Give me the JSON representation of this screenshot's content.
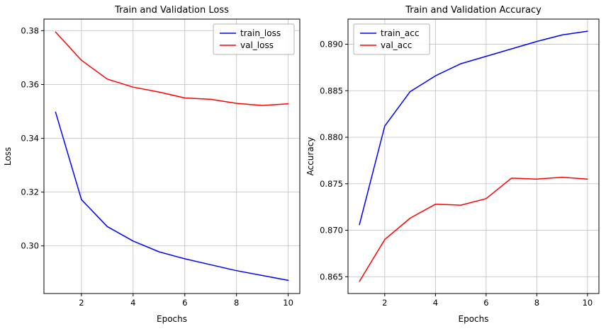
{
  "page": {
    "background": "#ffffff"
  },
  "chart_data": [
    {
      "type": "line",
      "title": "Train and Validation Loss",
      "xlabel": "Epochs",
      "ylabel": "Loss",
      "x": [
        1,
        2,
        3,
        4,
        5,
        6,
        7,
        8,
        9,
        10
      ],
      "series": [
        {
          "name": "train_loss",
          "color": "#0000ff",
          "values": [
            0.3497,
            0.3172,
            0.3072,
            0.3018,
            0.2978,
            0.2952,
            0.293,
            0.2908,
            0.289,
            0.2872
          ]
        },
        {
          "name": "val_loss",
          "color": "#ff0000",
          "values": [
            0.3795,
            0.369,
            0.362,
            0.359,
            0.3572,
            0.355,
            0.3545,
            0.353,
            0.3522,
            0.3528
          ]
        }
      ],
      "xlim": [
        0.55,
        10.45
      ],
      "ylim": [
        0.2823,
        0.3843
      ],
      "xticks": [
        "2",
        "4",
        "6",
        "8",
        "10"
      ],
      "yticks": [
        "0.30",
        "0.32",
        "0.34",
        "0.36",
        "0.38"
      ],
      "legend_position": "upper-right",
      "grid": true
    },
    {
      "type": "line",
      "title": "Train and Validation Accuracy",
      "xlabel": "Epochs",
      "ylabel": "Accuracy",
      "x": [
        1,
        2,
        3,
        4,
        5,
        6,
        7,
        8,
        9,
        10
      ],
      "series": [
        {
          "name": "train_acc",
          "color": "#0000ff",
          "values": [
            0.8706,
            0.8812,
            0.8849,
            0.8866,
            0.8879,
            0.8887,
            0.8895,
            0.8903,
            0.891,
            0.8914
          ]
        },
        {
          "name": "val_acc",
          "color": "#ff0000",
          "values": [
            0.8645,
            0.869,
            0.8713,
            0.8728,
            0.8727,
            0.8734,
            0.8756,
            0.8755,
            0.8757,
            0.8755
          ]
        }
      ],
      "xlim": [
        0.55,
        10.45
      ],
      "ylim": [
        0.8632,
        0.8927
      ],
      "xticks": [
        "2",
        "4",
        "6",
        "8",
        "10"
      ],
      "yticks": [
        "0.865",
        "0.870",
        "0.875",
        "0.880",
        "0.885",
        "0.890"
      ],
      "legend_position": "upper-left",
      "grid": true
    }
  ]
}
